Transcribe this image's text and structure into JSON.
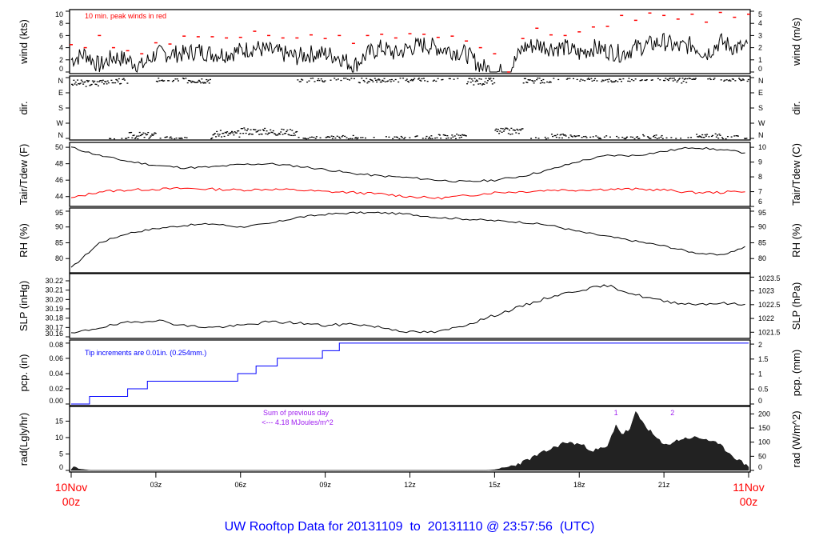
{
  "title": "UW Rooftop Data for 20131109  to  20131110 @ 23:57:56  (UTC)",
  "x_axis": {
    "start_label": [
      "10Nov",
      "00z"
    ],
    "end_label": [
      "11Nov",
      "00z"
    ],
    "ticks": [
      "03z",
      "06z",
      "09z",
      "12z",
      "15z",
      "18z",
      "21z"
    ],
    "range_hours": [
      0,
      24
    ]
  },
  "colors": {
    "title": "#0000ff",
    "peak": "#ff0000",
    "tdew": "#ff0000",
    "pcp": "#0000ff",
    "rad_note": "#a020f0",
    "date": "#ff0000"
  },
  "chart_data": [
    {
      "type": "line",
      "id": "wind",
      "ylabel": "wind (kts)",
      "ylabel_right": "wind (m/s)",
      "ylim": [
        0,
        10
      ],
      "yticks": [
        "0",
        "2",
        "4",
        "6",
        "8",
        "10"
      ],
      "yticks_right": [
        "0",
        "1",
        "2",
        "3",
        "4",
        "5"
      ],
      "annotation": "10 min. peak winds in red",
      "series": [
        {
          "name": "wind",
          "x_step_hours": 0.5,
          "values": [
            2,
            3,
            1,
            2.5,
            2,
            1,
            3,
            3,
            3,
            3.5,
            3,
            3,
            3.5,
            4,
            3.5,
            3,
            2.5,
            3,
            3,
            2.5,
            1,
            3,
            4,
            3,
            4,
            4.5,
            4,
            3.5,
            3,
            1,
            0,
            0,
            4,
            4.5,
            4,
            4,
            3,
            4,
            3.5,
            3,
            4,
            4.5,
            5,
            4,
            4.5,
            3,
            5,
            4,
            4
          ]
        },
        {
          "name": "peak",
          "x_step_hours": 0.5,
          "values": [
            4.5,
            4,
            6,
            4,
            3.5,
            3,
            4.8,
            4.6,
            5.9,
            5.8,
            5.8,
            5.6,
            5.7,
            6.7,
            6,
            5.6,
            5.6,
            6.1,
            5.5,
            6,
            4.7,
            6,
            6.2,
            5.6,
            6.3,
            6.2,
            5.7,
            5.9,
            5.1,
            4,
            3,
            0,
            5.5,
            7.2,
            6.1,
            6,
            6.6,
            7.4,
            7.5,
            9.3,
            8.5,
            9.7,
            9.3,
            8.7,
            9.5,
            8.2,
            9.8,
            9,
            9.5
          ]
        }
      ]
    },
    {
      "type": "scatter",
      "id": "dir",
      "ylabel": "dir.",
      "yticks": [
        "N",
        "W",
        "S",
        "E",
        "N"
      ],
      "note": "direction mostly N / NNW, some NE in 06z-07z",
      "x_step_hours": 1,
      "values_deg": [
        330,
        345,
        20,
        355,
        350,
        30,
        45,
        40,
        355,
        5,
        350,
        355,
        0,
        10,
        340,
        45,
        350,
        10,
        0,
        355,
        5,
        350,
        10,
        0,
        355
      ]
    },
    {
      "type": "line",
      "id": "temp",
      "ylabel": "Tair/Tdew (F)",
      "ylabel_right": "Tair/Tdew (C)",
      "ylim": [
        43,
        50.4
      ],
      "yticks": [
        "44",
        "46",
        "48",
        "50"
      ],
      "yticks_right": [
        "6",
        "7",
        "8",
        "9",
        "10"
      ],
      "series": [
        {
          "name": "Tair",
          "x_step_hours": 1,
          "values": [
            50,
            49,
            48.3,
            47.8,
            47.5,
            47.6,
            47.9,
            48,
            47.7,
            47.3,
            46.8,
            46.5,
            46.3,
            46,
            45.8,
            46,
            46.5,
            47.3,
            48.3,
            49,
            49,
            49.5,
            50,
            49.7,
            49.3
          ]
        },
        {
          "name": "Tdew",
          "x_step_hours": 1,
          "values": [
            43.8,
            44.6,
            44.8,
            44.9,
            45,
            44.9,
            44.8,
            44.9,
            44.8,
            44.6,
            44.5,
            44.3,
            44,
            43.8,
            44.1,
            44.5,
            44.6,
            44.8,
            44.8,
            44.9,
            44.9,
            44.8,
            44.5,
            44.5,
            44.7
          ]
        }
      ]
    },
    {
      "type": "line",
      "id": "rh",
      "ylabel": "RH (%)",
      "ylabel_right": "RH (%)",
      "ylim": [
        76,
        95.5
      ],
      "yticks": [
        "80",
        "85",
        "90",
        "95"
      ],
      "series": [
        {
          "name": "RH",
          "x_step_hours": 1,
          "values": [
            77,
            85,
            88,
            89.5,
            90.5,
            91,
            90,
            91,
            93,
            94,
            94.5,
            94.5,
            94,
            93,
            92.5,
            92,
            91.5,
            90.5,
            88.5,
            87,
            85.5,
            84,
            82,
            81,
            84
          ]
        }
      ]
    },
    {
      "type": "line",
      "id": "slp",
      "ylabel": "SLP (inHg)",
      "ylabel_right": "SLP (hPa)",
      "ylim": [
        30.16,
        30.226
      ],
      "yticks": [
        "30.16",
        "30.17",
        "30.18",
        "30.19",
        "30.20",
        "30.21",
        "30.22"
      ],
      "yticks_right": [
        "1021.5",
        "1022",
        "1022.5",
        "1023",
        "1023.5"
      ],
      "series": [
        {
          "name": "SLP",
          "x_step_hours": 1,
          "values": [
            30.163,
            30.17,
            30.175,
            30.178,
            30.172,
            30.17,
            30.172,
            30.176,
            30.175,
            30.172,
            30.174,
            30.17,
            30.165,
            30.165,
            30.173,
            30.183,
            30.193,
            30.203,
            30.21,
            30.215,
            30.205,
            30.198,
            30.195,
            30.196,
            30.194
          ]
        }
      ]
    },
    {
      "type": "step",
      "id": "pcp",
      "ylabel": "pcp. (in)",
      "ylabel_right": "pcp. (mm)",
      "ylim": [
        0,
        0.082
      ],
      "yticks": [
        "0.00",
        "0.02",
        "0.04",
        "0.06",
        "0.08"
      ],
      "yticks_right": [
        "0",
        "0.5",
        "1",
        "1.5",
        "2"
      ],
      "annotation": "Tip increments are 0.01in. (0.254mm.)",
      "tip_times_hours": [
        0.65,
        2.0,
        2.7,
        5.9,
        6.55,
        7.3,
        8.9,
        9.5
      ],
      "tip_in": 0.01
    },
    {
      "type": "area",
      "id": "rad",
      "ylabel": "rad(Lgly/hr)",
      "ylabel_right": "rad (W/m^2)",
      "ylim": [
        0,
        19
      ],
      "yticks": [
        "0",
        "5",
        "10",
        "15"
      ],
      "yticks_right": [
        "0",
        "50",
        "100",
        "150",
        "200"
      ],
      "annotation": [
        "Sum of previous day",
        "<--- 4.18 MJoules/m^2"
      ],
      "markers": [
        {
          "label": "1",
          "x": 19.3
        },
        {
          "label": "2",
          "x": 21.3
        }
      ],
      "x": [
        0,
        0.7,
        14.7,
        15,
        15.5,
        16,
        16.5,
        17,
        17.5,
        18,
        18.5,
        19,
        19.3,
        19.5,
        19.8,
        20,
        20.3,
        20.6,
        21,
        21.3,
        21.6,
        22,
        22.5,
        23,
        23.5,
        24
      ],
      "values": [
        0.7,
        0,
        0,
        0.2,
        1,
        2.5,
        4.5,
        6.5,
        8.5,
        8,
        6,
        7,
        14,
        11,
        12.5,
        17.5,
        14,
        11,
        7.5,
        8.5,
        9.5,
        10,
        9.5,
        7.5,
        4,
        1
      ]
    }
  ]
}
